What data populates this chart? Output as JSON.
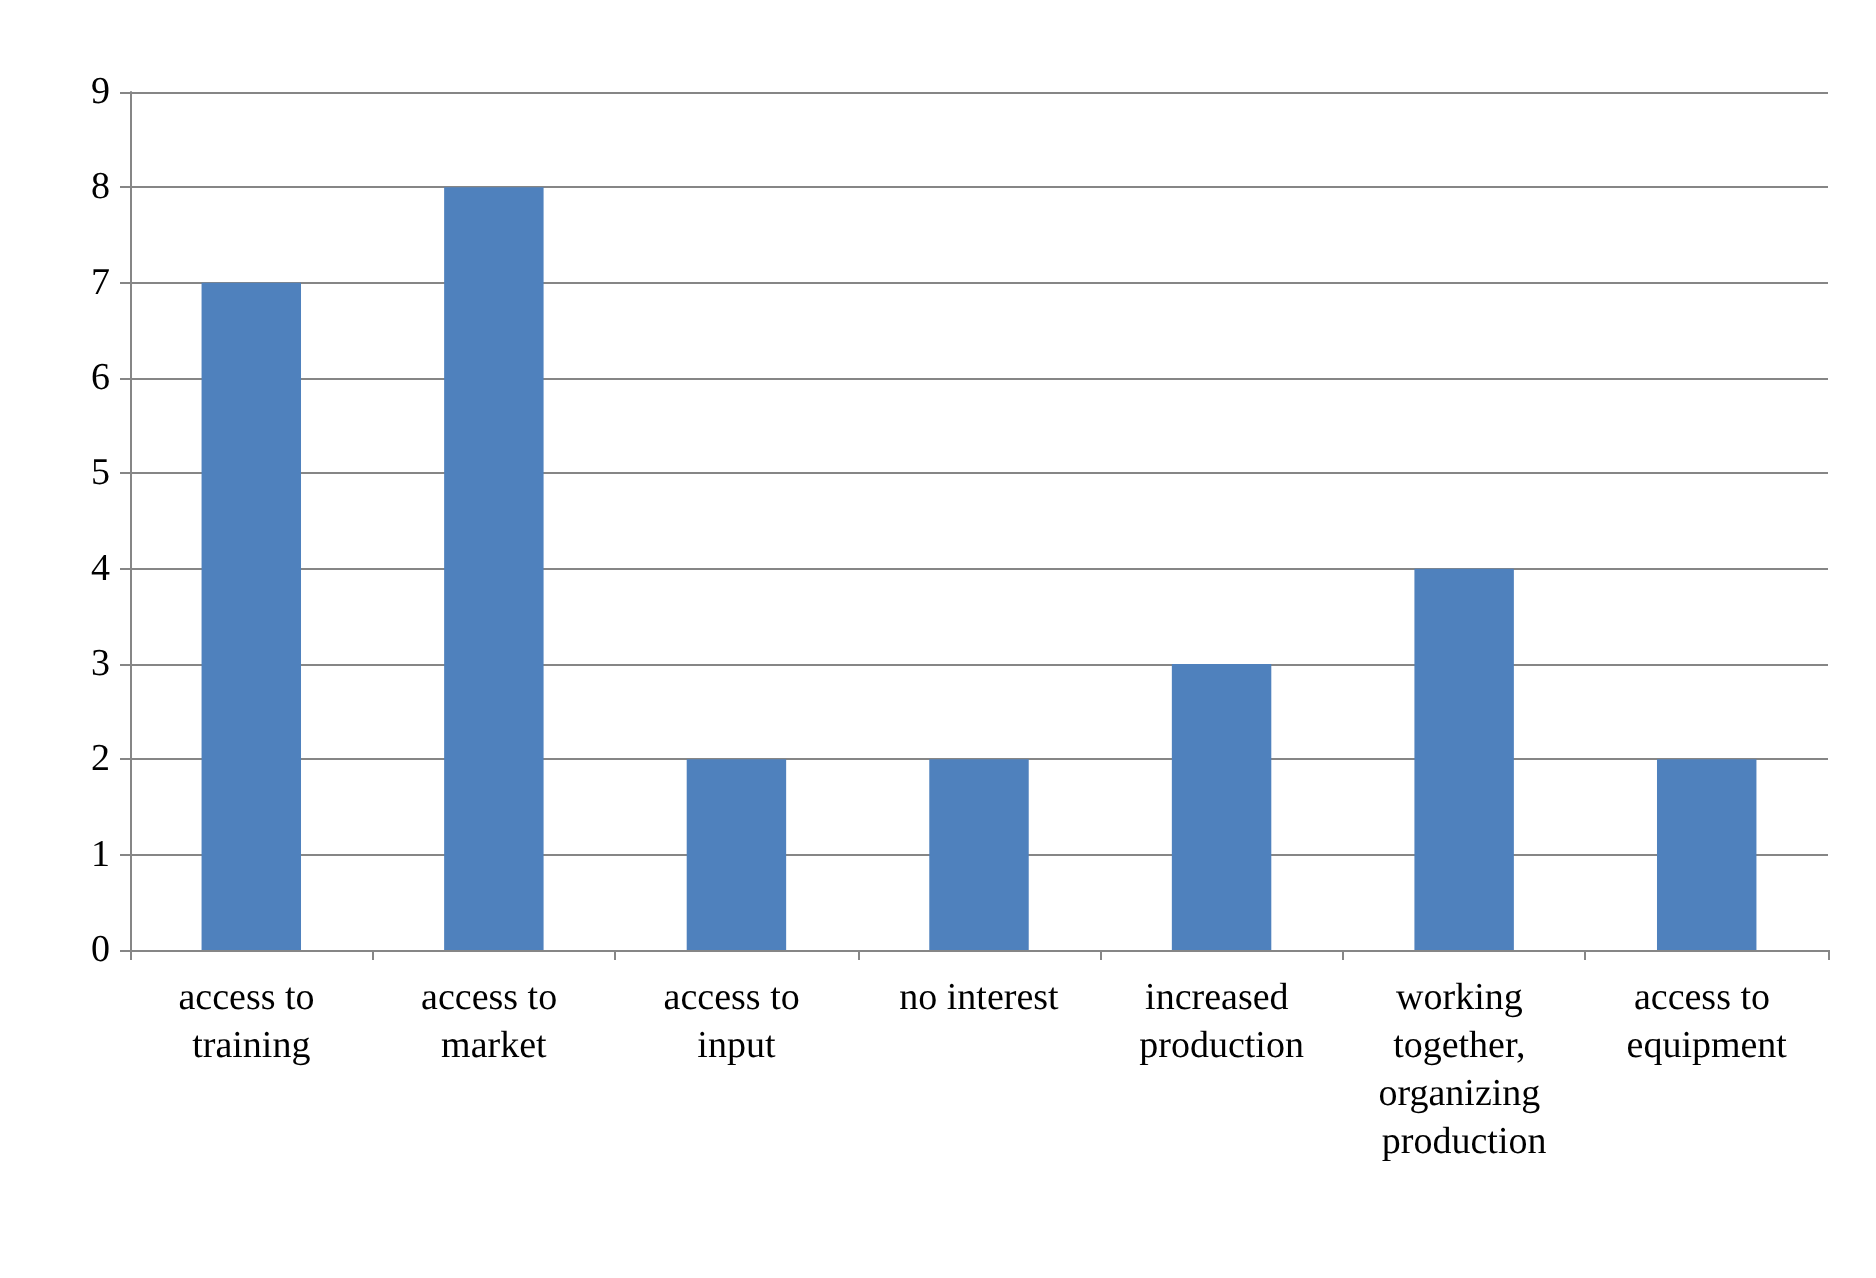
{
  "chart_data": {
    "type": "bar",
    "categories": [
      "access to training",
      "access to market",
      "access to input",
      "no interest",
      "increased production",
      "working together, organizing production",
      "access to equipment"
    ],
    "values": [
      7,
      8,
      2,
      2,
      3,
      4,
      2
    ],
    "color": "#4f81bd",
    "ylim": [
      0,
      9
    ],
    "yticks": [
      0,
      1,
      2,
      3,
      4,
      5,
      6,
      7,
      8,
      9
    ],
    "grid": "y"
  }
}
